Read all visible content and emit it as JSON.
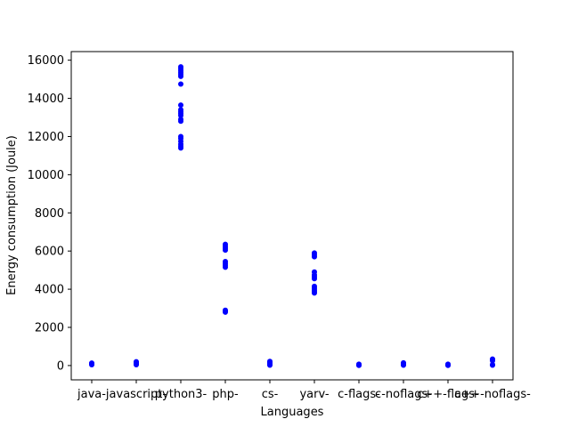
{
  "chart_data": {
    "type": "scatter",
    "title": "",
    "xlabel": "Languages",
    "ylabel": "Energy consumption (Joule)",
    "categories": [
      "java-",
      "javascript-",
      "python3-",
      "php-",
      "cs-",
      "yarv-",
      "c-flags-",
      "c-noflags-",
      "c++-flags-",
      "c++-noflags-"
    ],
    "yticks": [
      0,
      2000,
      4000,
      6000,
      8000,
      10000,
      12000,
      14000,
      16000
    ],
    "ylim": [
      -750,
      16450
    ],
    "grid": false,
    "legend": "none",
    "marker_color": "#0000ff",
    "points": [
      {
        "x": "java-",
        "y": 40
      },
      {
        "x": "java-",
        "y": 70
      },
      {
        "x": "java-",
        "y": 90
      },
      {
        "x": "java-",
        "y": 110
      },
      {
        "x": "java-",
        "y": 130
      },
      {
        "x": "javascript-",
        "y": 40
      },
      {
        "x": "javascript-",
        "y": 80
      },
      {
        "x": "javascript-",
        "y": 110
      },
      {
        "x": "javascript-",
        "y": 140
      },
      {
        "x": "javascript-",
        "y": 170
      },
      {
        "x": "javascript-",
        "y": 200
      },
      {
        "x": "python3-",
        "y": 11400
      },
      {
        "x": "python3-",
        "y": 11500
      },
      {
        "x": "python3-",
        "y": 11600
      },
      {
        "x": "python3-",
        "y": 11750
      },
      {
        "x": "python3-",
        "y": 11900
      },
      {
        "x": "python3-",
        "y": 12000
      },
      {
        "x": "python3-",
        "y": 12800
      },
      {
        "x": "python3-",
        "y": 12900
      },
      {
        "x": "python3-",
        "y": 13100
      },
      {
        "x": "python3-",
        "y": 13200
      },
      {
        "x": "python3-",
        "y": 13300
      },
      {
        "x": "python3-",
        "y": 13400
      },
      {
        "x": "python3-",
        "y": 13650
      },
      {
        "x": "python3-",
        "y": 14750
      },
      {
        "x": "python3-",
        "y": 15150
      },
      {
        "x": "python3-",
        "y": 15250
      },
      {
        "x": "python3-",
        "y": 15350
      },
      {
        "x": "python3-",
        "y": 15450
      },
      {
        "x": "python3-",
        "y": 15550
      },
      {
        "x": "python3-",
        "y": 15650
      },
      {
        "x": "php-",
        "y": 2800
      },
      {
        "x": "php-",
        "y": 2850
      },
      {
        "x": "php-",
        "y": 2900
      },
      {
        "x": "php-",
        "y": 5150
      },
      {
        "x": "php-",
        "y": 5250
      },
      {
        "x": "php-",
        "y": 5350
      },
      {
        "x": "php-",
        "y": 5450
      },
      {
        "x": "php-",
        "y": 6050
      },
      {
        "x": "php-",
        "y": 6150
      },
      {
        "x": "php-",
        "y": 6250
      },
      {
        "x": "php-",
        "y": 6350
      },
      {
        "x": "cs-",
        "y": 20
      },
      {
        "x": "cs-",
        "y": 60
      },
      {
        "x": "cs-",
        "y": 100
      },
      {
        "x": "cs-",
        "y": 140
      },
      {
        "x": "cs-",
        "y": 180
      },
      {
        "x": "cs-",
        "y": 220
      },
      {
        "x": "yarv-",
        "y": 3800
      },
      {
        "x": "yarv-",
        "y": 3870
      },
      {
        "x": "yarv-",
        "y": 3950
      },
      {
        "x": "yarv-",
        "y": 4050
      },
      {
        "x": "yarv-",
        "y": 4150
      },
      {
        "x": "yarv-",
        "y": 4550
      },
      {
        "x": "yarv-",
        "y": 4650
      },
      {
        "x": "yarv-",
        "y": 4750
      },
      {
        "x": "yarv-",
        "y": 4900
      },
      {
        "x": "yarv-",
        "y": 5700
      },
      {
        "x": "yarv-",
        "y": 5800
      },
      {
        "x": "yarv-",
        "y": 5900
      },
      {
        "x": "c-flags-",
        "y": 10
      },
      {
        "x": "c-flags-",
        "y": 30
      },
      {
        "x": "c-flags-",
        "y": 50
      },
      {
        "x": "c-flags-",
        "y": 70
      },
      {
        "x": "c-noflags-",
        "y": 20
      },
      {
        "x": "c-noflags-",
        "y": 50
      },
      {
        "x": "c-noflags-",
        "y": 80
      },
      {
        "x": "c-noflags-",
        "y": 110
      },
      {
        "x": "c-noflags-",
        "y": 140
      },
      {
        "x": "c++-flags-",
        "y": 10
      },
      {
        "x": "c++-flags-",
        "y": 30
      },
      {
        "x": "c++-flags-",
        "y": 50
      },
      {
        "x": "c++-flags-",
        "y": 70
      },
      {
        "x": "c++-noflags-",
        "y": 20
      },
      {
        "x": "c++-noflags-",
        "y": 50
      },
      {
        "x": "c++-noflags-",
        "y": 250
      },
      {
        "x": "c++-noflags-",
        "y": 300
      },
      {
        "x": "c++-noflags-",
        "y": 340
      }
    ]
  }
}
